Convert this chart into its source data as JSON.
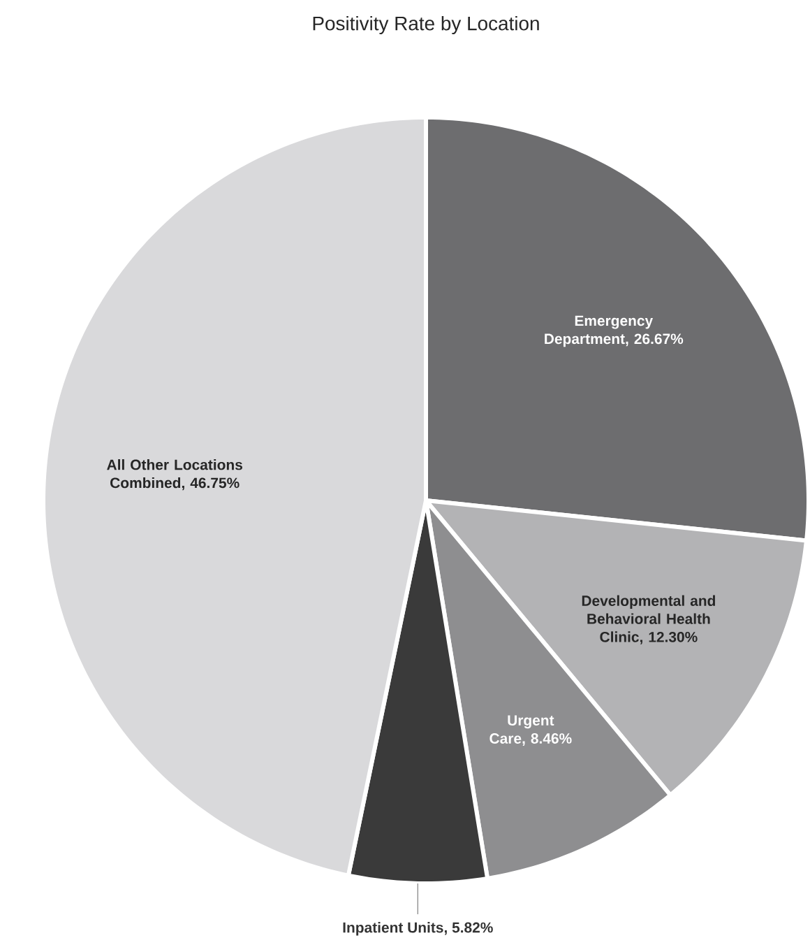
{
  "chart_data": {
    "type": "pie",
    "title": "Positivity Rate by Location",
    "categories": [
      "Emergency Department",
      "Developmental and Behavioral Health Clinic",
      "Urgent Care",
      "Inpatient Units",
      "All Other Locations Combined"
    ],
    "values": [
      26.67,
      12.3,
      8.46,
      5.82,
      46.75
    ],
    "colors": [
      "#6d6d6f",
      "#b3b3b5",
      "#8e8e90",
      "#3a3a3a",
      "#d9d9db"
    ],
    "value_labels": [
      ", 26.67%",
      ", 12.30%",
      ", 8.46%",
      ", 5.82%",
      ", 46.75%"
    ]
  }
}
